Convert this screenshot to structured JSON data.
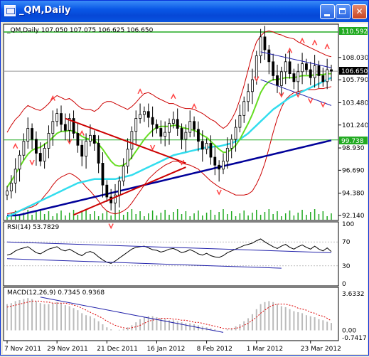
{
  "window": {
    "title": "_QM,Daily",
    "app_icon": "chart-window-icon",
    "buttons": [
      "minimize-icon",
      "maximize-icon",
      "close-icon"
    ]
  },
  "colors": {
    "titlebar": "#0a58e6",
    "background": "#ffffff",
    "candles": "#000000",
    "bollinger": "#cc0000",
    "ma_fast": "#66dd22",
    "ma_mid": "#33ddee",
    "ma_slow": "#000099",
    "trendline_red": "#cc0000",
    "trendline_blue": "#2222aa",
    "level_line": "#22aa22",
    "volume": "#22aa22",
    "fractal": "#ff4444"
  },
  "main_panel": {
    "header": "_QM,Daily  107.050 107.075 106.625 106.650",
    "price_ticks": [
      "108.030",
      "105.790",
      "103.480",
      "101.240",
      "98.930",
      "96.690",
      "94.380",
      "92.140"
    ],
    "price_range": [
      92.14,
      110.592
    ],
    "level_high": "110.592",
    "level_low": "99.738",
    "current_price": "106.650",
    "level_high_value": 110.592,
    "level_low_value": 99.738,
    "current_value": 106.65
  },
  "rsi_panel": {
    "header": "RSI(14) 53.7829",
    "ticks": [
      "100",
      "70",
      "30",
      "0"
    ],
    "range": [
      0,
      100
    ]
  },
  "macd_panel": {
    "header": "MACD(12,26,9) 0.7345 0.9368",
    "ticks": [
      "3.6332",
      "0.00",
      "-0.7417"
    ],
    "range": [
      -0.7417,
      3.6332
    ]
  },
  "time_axis": {
    "labels": [
      "7 Nov 2011",
      "29 Nov 2011",
      "21 Dec 2011",
      "16 Jan 2012",
      "8 Feb 2012",
      "1 Mar 2012",
      "23 Mar 2012"
    ]
  },
  "chart_data": {
    "type": "candlestick",
    "title": "",
    "symbol": "_QM",
    "timeframe": "Daily",
    "x_start": "7 Nov 2011",
    "x_end": "23 Mar 2012",
    "ylim": [
      92.14,
      110.592
    ],
    "last_bar": {
      "open": 107.05,
      "high": 107.075,
      "low": 106.625,
      "close": 106.65
    },
    "close": [
      94.6,
      95.4,
      96.8,
      98.2,
      99.6,
      100.9,
      99.8,
      98.4,
      97.6,
      98.9,
      100.4,
      101.6,
      102.4,
      101.3,
      100.7,
      101.9,
      100.4,
      99.2,
      98.1,
      99.6,
      100.2,
      99.4,
      97.4,
      95.2,
      94.0,
      93.4,
      94.2,
      95.6,
      97.1,
      98.8,
      100.6,
      101.9,
      102.3,
      102.6,
      102.0,
      101.3,
      100.9,
      100.1,
      100.5,
      101.4,
      101.8,
      100.9,
      99.8,
      100.5,
      101.6,
      100.8,
      99.6,
      98.8,
      99.4,
      98.0,
      97.2,
      96.8,
      97.6,
      98.9,
      99.8,
      101.0,
      102.2,
      103.6,
      104.6,
      105.8,
      108.2,
      110.1,
      108.8,
      107.6,
      106.2,
      105.2,
      106.6,
      107.6,
      106.4,
      105.6,
      106.6,
      107.4,
      106.8,
      106.0,
      107.2,
      106.2,
      105.6,
      106.8,
      106.65
    ],
    "bollinger_upper": [
      100.5,
      101.2,
      101.8,
      102.2,
      102.8,
      103.2,
      103.0,
      102.8,
      102.7,
      103.0,
      103.4,
      103.9,
      104.2,
      104.0,
      103.8,
      103.9,
      103.6,
      103.2,
      102.9,
      102.8,
      102.8,
      102.6,
      102.9,
      103.4,
      103.6,
      103.6,
      103.4,
      103.2,
      103.0,
      102.8,
      103.1,
      103.5,
      104.0,
      104.4,
      104.5,
      104.3,
      104.0,
      103.8,
      103.6,
      103.4,
      103.4,
      103.2,
      103.0,
      102.9,
      102.9,
      102.8,
      102.6,
      102.4,
      102.1,
      101.8,
      101.6,
      101.2,
      100.9,
      101.2,
      101.8,
      102.6,
      103.8,
      105.2,
      106.8,
      108.4,
      109.6,
      110.2,
      110.6,
      110.7,
      110.6,
      110.4,
      110.3,
      110.1,
      110.0,
      109.9,
      109.6,
      109.4,
      109.2,
      109.0,
      108.8,
      108.6,
      108.4,
      108.2,
      108.1
    ],
    "bollinger_lower": [
      92.3,
      92.4,
      92.5,
      92.6,
      92.7,
      92.9,
      93.0,
      93.2,
      93.6,
      94.1,
      94.6,
      95.2,
      95.7,
      96.0,
      96.2,
      96.4,
      96.2,
      95.9,
      95.5,
      95.0,
      94.6,
      94.1,
      93.6,
      93.0,
      92.6,
      92.4,
      92.3,
      92.4,
      92.6,
      92.9,
      93.4,
      94.0,
      94.6,
      95.2,
      95.8,
      96.2,
      96.6,
      96.9,
      97.2,
      97.4,
      97.6,
      97.6,
      97.4,
      97.3,
      97.2,
      97.0,
      96.8,
      96.4,
      96.0,
      95.6,
      95.3,
      95.0,
      94.8,
      94.6,
      94.4,
      94.2,
      94.2,
      94.2,
      94.3,
      94.6,
      95.3,
      96.2,
      97.4,
      98.9,
      100.5,
      101.9,
      103.0,
      103.8,
      104.2,
      104.5,
      104.6,
      104.7,
      104.8,
      104.8,
      104.8,
      104.9,
      104.9,
      105.0,
      105.1
    ],
    "ma_fast": [
      95.0,
      95.6,
      96.3,
      97.0,
      97.7,
      98.3,
      98.7,
      98.9,
      99.0,
      99.3,
      99.6,
      100.0,
      100.4,
      100.6,
      100.6,
      100.7,
      100.6,
      100.4,
      100.1,
      99.9,
      99.8,
      99.7,
      99.3,
      98.8,
      98.2,
      97.6,
      97.2,
      97.1,
      97.2,
      97.5,
      98.0,
      98.6,
      99.2,
      99.8,
      100.3,
      100.7,
      101.0,
      101.1,
      101.1,
      101.1,
      101.2,
      101.2,
      101.0,
      100.9,
      100.8,
      100.7,
      100.5,
      100.2,
      100.0,
      99.6,
      99.2,
      98.8,
      98.5,
      98.5,
      98.8,
      99.2,
      99.8,
      100.6,
      101.4,
      102.3,
      103.4,
      104.5,
      105.2,
      105.6,
      105.8,
      105.8,
      105.9,
      106.0,
      106.0,
      106.0,
      106.1,
      106.2,
      106.2,
      106.2,
      106.3,
      106.3,
      106.3,
      106.4,
      106.4
    ],
    "ma_mid": [
      92.0,
      92.2,
      92.4,
      92.6,
      92.8,
      93.0,
      93.2,
      93.4,
      93.6,
      93.8,
      94.0,
      94.2,
      94.4,
      94.6,
      94.8,
      95.0,
      95.2,
      95.4,
      95.5,
      95.6,
      95.7,
      95.8,
      95.8,
      95.8,
      95.8,
      95.8,
      95.8,
      95.9,
      96.0,
      96.1,
      96.2,
      96.4,
      96.6,
      96.8,
      97.0,
      97.2,
      97.4,
      97.6,
      97.8,
      98.0,
      98.2,
      98.3,
      98.4,
      98.5,
      98.6,
      98.7,
      98.8,
      98.9,
      99.0,
      99.0,
      99.1,
      99.1,
      99.2,
      99.3,
      99.4,
      99.6,
      99.8,
      100.1,
      100.4,
      100.8,
      101.2,
      101.6,
      102.0,
      102.4,
      102.8,
      103.1,
      103.4,
      103.7,
      104.0,
      104.2,
      104.4,
      104.6,
      104.8,
      105.0,
      105.2,
      105.4,
      105.6,
      105.8,
      106.0
    ],
    "ma_slow": [
      92.14,
      92.14,
      92.14,
      92.2,
      92.3,
      92.4,
      92.5,
      92.6,
      92.7,
      92.8,
      92.9,
      93.0,
      93.1,
      93.2,
      93.3,
      93.4,
      93.5,
      93.6,
      93.7,
      93.8,
      93.9,
      94.0,
      94.1,
      94.2,
      94.3,
      94.4,
      94.5,
      94.6,
      94.7,
      94.8,
      94.9,
      95.0,
      95.1,
      95.2,
      95.3,
      95.4,
      95.5,
      95.6,
      95.7,
      95.8,
      95.9,
      96.0,
      96.1,
      96.2,
      96.3,
      96.4,
      96.5,
      96.6,
      96.7,
      96.8,
      96.9,
      97.0,
      97.1,
      97.2,
      97.3,
      97.4,
      97.5,
      97.6,
      97.7,
      97.8,
      97.9,
      98.0,
      98.1,
      98.2,
      98.3,
      98.4,
      98.5,
      98.6,
      98.7,
      98.8,
      98.9,
      99.0,
      99.1,
      99.2,
      99.3,
      99.4,
      99.5,
      99.6,
      99.7
    ],
    "rsi": [
      48,
      50,
      55,
      58,
      60,
      62,
      57,
      52,
      50,
      54,
      58,
      60,
      62,
      57,
      55,
      58,
      54,
      50,
      47,
      52,
      54,
      51,
      45,
      40,
      36,
      34,
      38,
      43,
      48,
      53,
      58,
      61,
      62,
      63,
      60,
      57,
      56,
      53,
      55,
      58,
      59,
      56,
      52,
      54,
      57,
      54,
      50,
      48,
      51,
      47,
      45,
      44,
      47,
      52,
      55,
      58,
      61,
      64,
      66,
      68,
      72,
      75,
      70,
      66,
      62,
      59,
      63,
      66,
      61,
      58,
      62,
      65,
      61,
      58,
      63,
      58,
      55,
      60,
      53.78
    ],
    "macd_hist": [
      2.6,
      2.7,
      2.9,
      3.0,
      3.1,
      3.2,
      3.1,
      2.9,
      2.7,
      2.6,
      2.6,
      2.7,
      2.8,
      2.7,
      2.5,
      2.4,
      2.2,
      2.0,
      1.7,
      1.5,
      1.4,
      1.2,
      0.9,
      0.6,
      0.3,
      0.1,
      0.0,
      0.05,
      0.1,
      0.3,
      0.5,
      0.8,
      1.1,
      1.3,
      1.4,
      1.4,
      1.3,
      1.2,
      1.1,
      1.0,
      1.0,
      0.9,
      0.8,
      0.7,
      0.7,
      0.6,
      0.5,
      0.4,
      0.3,
      0.2,
      0.1,
      0.0,
      0.0,
      0.1,
      0.2,
      0.4,
      0.6,
      0.9,
      1.2,
      1.6,
      2.1,
      2.6,
      2.8,
      2.9,
      2.8,
      2.6,
      2.4,
      2.3,
      2.1,
      1.9,
      1.8,
      1.7,
      1.5,
      1.4,
      1.3,
      1.1,
      1.0,
      0.85,
      0.73
    ],
    "macd_signal": [
      2.3,
      2.4,
      2.5,
      2.6,
      2.7,
      2.8,
      2.9,
      2.9,
      2.9,
      2.8,
      2.8,
      2.7,
      2.7,
      2.7,
      2.7,
      2.6,
      2.5,
      2.4,
      2.2,
      2.0,
      1.8,
      1.6,
      1.4,
      1.2,
      0.9,
      0.7,
      0.5,
      0.35,
      0.25,
      0.2,
      0.25,
      0.35,
      0.5,
      0.7,
      0.9,
      1.0,
      1.1,
      1.2,
      1.2,
      1.2,
      1.1,
      1.1,
      1.0,
      1.0,
      0.9,
      0.8,
      0.8,
      0.7,
      0.6,
      0.5,
      0.4,
      0.3,
      0.2,
      0.15,
      0.15,
      0.2,
      0.3,
      0.5,
      0.7,
      1.0,
      1.3,
      1.7,
      2.0,
      2.3,
      2.5,
      2.6,
      2.6,
      2.6,
      2.5,
      2.4,
      2.2,
      2.1,
      2.0,
      1.8,
      1.7,
      1.5,
      1.4,
      1.2,
      0.94
    ]
  }
}
